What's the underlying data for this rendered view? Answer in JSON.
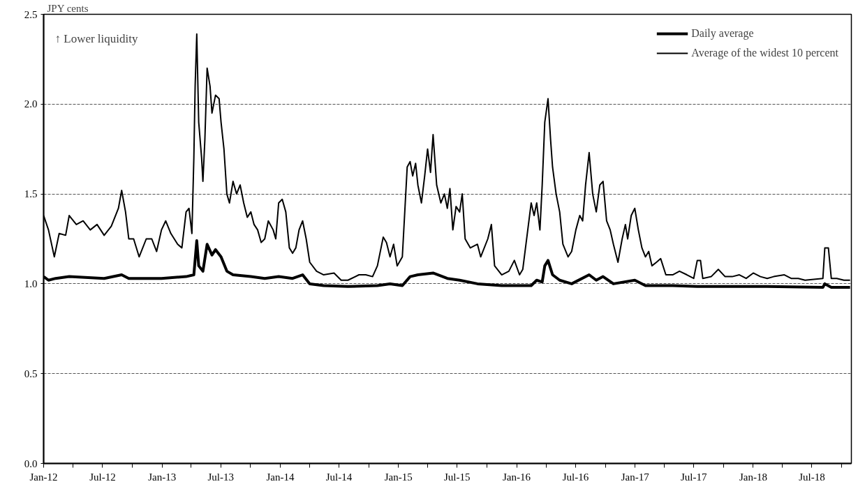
{
  "chart_data": {
    "type": "line",
    "ylabel": "JPY cents",
    "annotations": [
      "↑ Lower liquidity"
    ],
    "xlim": [
      "2012-01-01",
      "2018-10-31"
    ],
    "xticks": [
      {
        "value": "2012-01-01",
        "label": "Jan-12"
      },
      {
        "value": "2012-04-01",
        "label": null
      },
      {
        "value": "2012-07-01",
        "label": "Jul-12"
      },
      {
        "value": "2012-10-01",
        "label": null
      },
      {
        "value": "2013-01-01",
        "label": "Jan-13"
      },
      {
        "value": "2013-04-01",
        "label": null
      },
      {
        "value": "2013-07-01",
        "label": "Jul-13"
      },
      {
        "value": "2013-10-01",
        "label": null
      },
      {
        "value": "2014-01-01",
        "label": "Jan-14"
      },
      {
        "value": "2014-04-01",
        "label": null
      },
      {
        "value": "2014-07-01",
        "label": "Jul-14"
      },
      {
        "value": "2014-10-01",
        "label": null
      },
      {
        "value": "2015-01-01",
        "label": "Jan-15"
      },
      {
        "value": "2015-04-01",
        "label": null
      },
      {
        "value": "2015-07-01",
        "label": "Jul-15"
      },
      {
        "value": "2015-10-01",
        "label": null
      },
      {
        "value": "2016-01-01",
        "label": "Jan-16"
      },
      {
        "value": "2016-04-01",
        "label": null
      },
      {
        "value": "2016-07-01",
        "label": "Jul-16"
      },
      {
        "value": "2016-10-01",
        "label": null
      },
      {
        "value": "2017-01-01",
        "label": "Jan-17"
      },
      {
        "value": "2017-04-01",
        "label": null
      },
      {
        "value": "2017-07-01",
        "label": "Jul-17"
      },
      {
        "value": "2017-10-01",
        "label": null
      },
      {
        "value": "2018-01-01",
        "label": "Jan-18"
      },
      {
        "value": "2018-04-01",
        "label": null
      },
      {
        "value": "2018-07-01",
        "label": "Jul-18"
      },
      {
        "value": "2018-10-01",
        "label": null
      }
    ],
    "ylim": [
      0,
      2.5
    ],
    "yticks": [
      {
        "value": 0,
        "label": "0.0"
      },
      {
        "value": 0.5,
        "label": "0.5"
      },
      {
        "value": 1,
        "label": "1.0"
      },
      {
        "value": 1.5,
        "label": "1.5"
      },
      {
        "value": 2,
        "label": "2.0"
      },
      {
        "value": 2.5,
        "label": "2.5"
      }
    ],
    "grid": "y",
    "legend": "top right",
    "line_style": "solid",
    "series": [
      {
        "name": "Daily average",
        "color": "#000000",
        "x": [
          "2012-01-01",
          "2012-01-16",
          "2012-02-07",
          "2012-03-20",
          "2012-07-06",
          "2012-08-29",
          "2012-09-20",
          "2012-12-30",
          "2013-03-16",
          "2013-04-09",
          "2013-04-18",
          "2013-04-24",
          "2013-05-07",
          "2013-05-20",
          "2013-06-04",
          "2013-06-15",
          "2013-07-02",
          "2013-07-20",
          "2013-08-08",
          "2013-10-02",
          "2013-11-14",
          "2013-12-27",
          "2014-02-08",
          "2014-03-11",
          "2014-04-02",
          "2014-05-15",
          "2014-07-29",
          "2014-10-28",
          "2014-12-06",
          "2015-01-13",
          "2015-02-06",
          "2015-03-02",
          "2015-04-18",
          "2015-06-01",
          "2015-07-09",
          "2015-09-02",
          "2015-11-16",
          "2016-02-15",
          "2016-03-03",
          "2016-03-20",
          "2016-03-28",
          "2016-04-07",
          "2016-04-21",
          "2016-05-13",
          "2016-06-19",
          "2016-08-12",
          "2016-09-03",
          "2016-09-24",
          "2016-10-26",
          "2016-12-31",
          "2017-02-02",
          "2017-04-27",
          "2017-07-12",
          "2018-02-13",
          "2018-08-04",
          "2018-08-10",
          "2018-08-30",
          "2018-10-27"
        ],
        "values": [
          1.04,
          1.02,
          1.03,
          1.04,
          1.03,
          1.05,
          1.03,
          1.03,
          1.04,
          1.05,
          1.24,
          1.1,
          1.07,
          1.22,
          1.16,
          1.19,
          1.15,
          1.07,
          1.05,
          1.04,
          1.03,
          1.04,
          1.03,
          1.05,
          1.0,
          0.99,
          0.985,
          0.99,
          1.0,
          0.99,
          1.04,
          1.05,
          1.06,
          1.03,
          1.02,
          1.0,
          0.99,
          0.99,
          1.02,
          1.01,
          1.1,
          1.13,
          1.05,
          1.02,
          1.0,
          1.05,
          1.02,
          1.04,
          1.0,
          1.02,
          0.99,
          0.99,
          0.985,
          0.985,
          0.98,
          1.0,
          0.98,
          0.98
        ]
      },
      {
        "name": "Average of the widest 10 percent",
        "color": "#000000",
        "x": [
          "2012-01-01",
          "2012-01-16",
          "2012-02-03",
          "2012-02-18",
          "2012-03-09",
          "2012-03-20",
          "2012-04-11",
          "2012-05-02",
          "2012-05-24",
          "2012-06-14",
          "2012-07-06",
          "2012-07-28",
          "2012-08-19",
          "2012-08-29",
          "2012-09-10",
          "2012-09-20",
          "2012-10-05",
          "2012-10-22",
          "2012-11-13",
          "2012-11-30",
          "2012-12-15",
          "2012-12-30",
          "2013-01-12",
          "2013-01-28",
          "2013-02-18",
          "2013-03-03",
          "2013-03-16",
          "2013-03-25",
          "2013-04-03",
          "2013-04-09",
          "2013-04-13",
          "2013-04-18",
          "2013-04-24",
          "2013-05-03",
          "2013-05-07",
          "2013-05-13",
          "2013-05-20",
          "2013-05-29",
          "2013-06-04",
          "2013-06-15",
          "2013-06-26",
          "2013-07-02",
          "2013-07-11",
          "2013-07-20",
          "2013-07-28",
          "2013-08-08",
          "2013-08-19",
          "2013-08-30",
          "2013-09-10",
          "2013-09-21",
          "2013-10-02",
          "2013-10-12",
          "2013-10-23",
          "2013-11-03",
          "2013-11-14",
          "2013-11-25",
          "2013-12-10",
          "2013-12-18",
          "2013-12-27",
          "2014-01-07",
          "2014-01-18",
          "2014-01-29",
          "2014-02-08",
          "2014-02-18",
          "2014-02-28",
          "2014-03-11",
          "2014-03-22",
          "2014-04-02",
          "2014-04-23",
          "2014-05-15",
          "2014-06-16",
          "2014-07-08",
          "2014-07-29",
          "2014-09-01",
          "2014-09-22",
          "2014-10-13",
          "2014-10-28",
          "2014-11-15",
          "2014-11-25",
          "2014-12-06",
          "2014-12-17",
          "2014-12-28",
          "2015-01-13",
          "2015-01-28",
          "2015-02-06",
          "2015-02-14",
          "2015-02-23",
          "2015-03-02",
          "2015-03-13",
          "2015-03-23",
          "2015-04-01",
          "2015-04-10",
          "2015-04-18",
          "2015-04-29",
          "2015-05-12",
          "2015-05-23",
          "2015-06-01",
          "2015-06-09",
          "2015-06-18",
          "2015-06-28",
          "2015-07-09",
          "2015-07-17",
          "2015-07-26",
          "2015-08-11",
          "2015-09-02",
          "2015-09-12",
          "2015-10-04",
          "2015-10-15",
          "2015-10-25",
          "2015-11-16",
          "2015-12-08",
          "2015-12-25",
          "2016-01-10",
          "2016-01-20",
          "2016-02-15",
          "2016-02-24",
          "2016-03-03",
          "2016-03-13",
          "2016-03-20",
          "2016-03-28",
          "2016-04-07",
          "2016-04-15",
          "2016-04-21",
          "2016-05-02",
          "2016-05-13",
          "2016-05-23",
          "2016-06-08",
          "2016-06-19",
          "2016-07-02",
          "2016-07-14",
          "2016-07-23",
          "2016-08-01",
          "2016-08-12",
          "2016-08-23",
          "2016-09-03",
          "2016-09-14",
          "2016-09-24",
          "2016-10-05",
          "2016-10-16",
          "2016-10-26",
          "2016-11-09",
          "2016-11-22",
          "2016-12-02",
          "2016-12-09",
          "2016-12-20",
          "2016-12-31",
          "2017-01-11",
          "2017-01-22",
          "2017-02-02",
          "2017-02-12",
          "2017-02-22",
          "2017-03-08",
          "2017-03-21",
          "2017-04-06",
          "2017-04-27",
          "2017-05-18",
          "2017-06-10",
          "2017-07-01",
          "2017-07-12",
          "2017-07-22",
          "2017-07-29",
          "2017-08-24",
          "2017-09-15",
          "2017-10-06",
          "2017-10-28",
          "2017-11-19",
          "2017-12-10",
          "2018-01-01",
          "2018-01-23",
          "2018-02-13",
          "2018-03-05",
          "2018-04-07",
          "2018-04-28",
          "2018-05-20",
          "2018-06-10",
          "2018-08-04",
          "2018-08-10",
          "2018-08-21",
          "2018-08-30",
          "2018-09-16",
          "2018-10-08",
          "2018-10-27"
        ],
        "values": [
          1.38,
          1.3,
          1.15,
          1.28,
          1.27,
          1.38,
          1.33,
          1.35,
          1.3,
          1.33,
          1.27,
          1.32,
          1.42,
          1.52,
          1.4,
          1.25,
          1.25,
          1.15,
          1.25,
          1.25,
          1.18,
          1.3,
          1.35,
          1.28,
          1.22,
          1.2,
          1.4,
          1.42,
          1.28,
          1.7,
          2.1,
          2.39,
          1.9,
          1.7,
          1.57,
          1.8,
          2.2,
          2.1,
          1.95,
          2.05,
          2.03,
          1.9,
          1.75,
          1.5,
          1.45,
          1.57,
          1.5,
          1.55,
          1.45,
          1.37,
          1.4,
          1.33,
          1.3,
          1.23,
          1.25,
          1.35,
          1.3,
          1.25,
          1.45,
          1.47,
          1.4,
          1.2,
          1.17,
          1.2,
          1.3,
          1.35,
          1.25,
          1.12,
          1.07,
          1.05,
          1.06,
          1.02,
          1.02,
          1.05,
          1.05,
          1.04,
          1.1,
          1.26,
          1.23,
          1.15,
          1.22,
          1.1,
          1.15,
          1.65,
          1.68,
          1.6,
          1.67,
          1.55,
          1.45,
          1.6,
          1.75,
          1.62,
          1.83,
          1.55,
          1.45,
          1.5,
          1.42,
          1.53,
          1.3,
          1.43,
          1.4,
          1.5,
          1.25,
          1.2,
          1.22,
          1.15,
          1.25,
          1.33,
          1.1,
          1.05,
          1.07,
          1.13,
          1.05,
          1.08,
          1.45,
          1.38,
          1.45,
          1.3,
          1.55,
          1.9,
          2.03,
          1.8,
          1.65,
          1.5,
          1.4,
          1.22,
          1.15,
          1.18,
          1.3,
          1.38,
          1.35,
          1.55,
          1.73,
          1.5,
          1.4,
          1.55,
          1.57,
          1.35,
          1.3,
          1.22,
          1.12,
          1.25,
          1.33,
          1.25,
          1.38,
          1.42,
          1.3,
          1.2,
          1.15,
          1.18,
          1.1,
          1.12,
          1.14,
          1.05,
          1.05,
          1.07,
          1.05,
          1.03,
          1.13,
          1.13,
          1.03,
          1.04,
          1.08,
          1.04,
          1.04,
          1.05,
          1.03,
          1.06,
          1.04,
          1.03,
          1.04,
          1.05,
          1.03,
          1.03,
          1.02,
          1.03,
          1.2,
          1.2,
          1.03,
          1.03,
          1.02,
          1.02
        ]
      }
    ]
  }
}
